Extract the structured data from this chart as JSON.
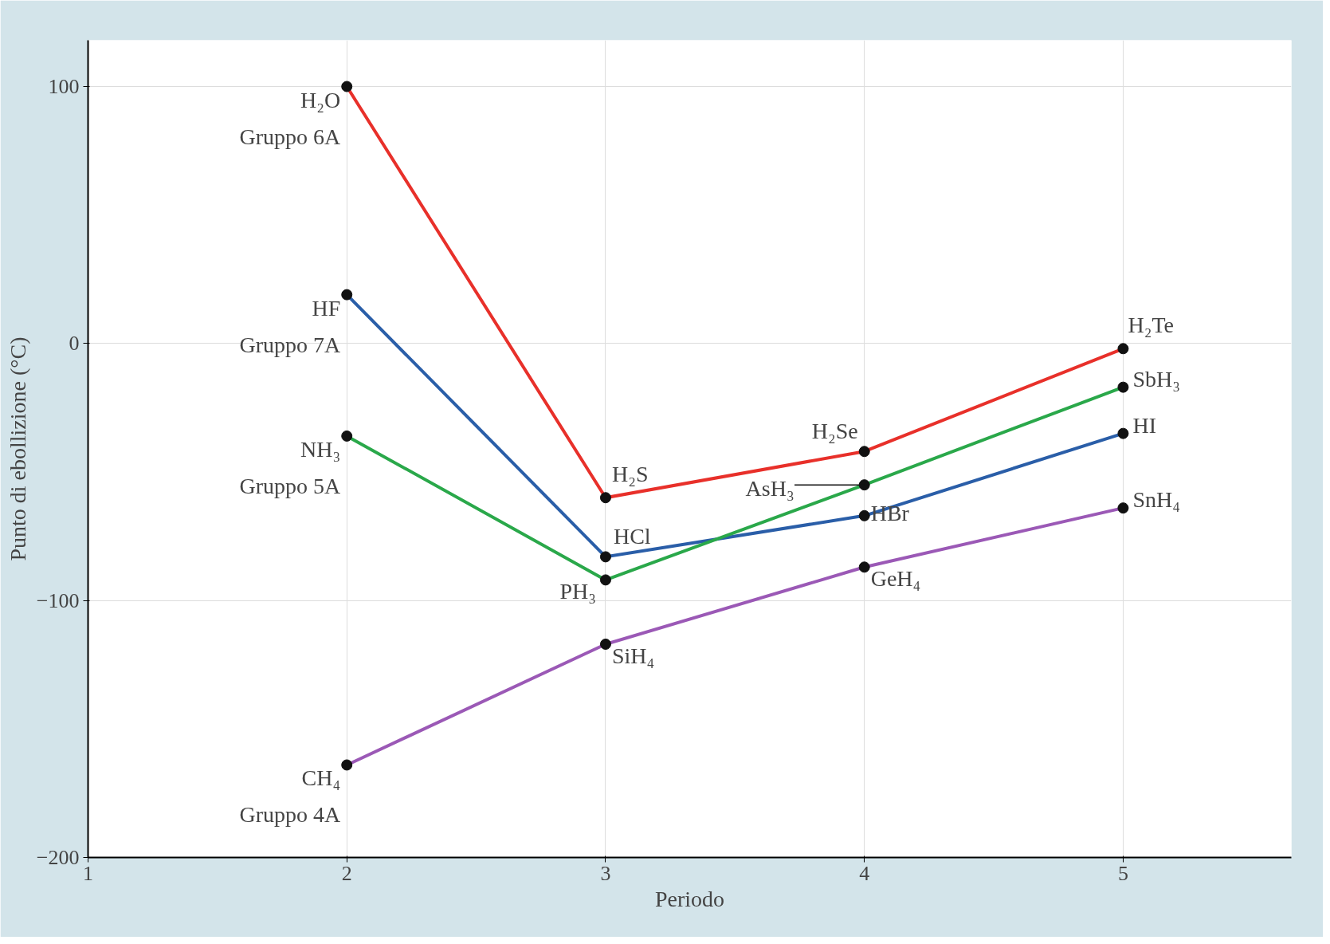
{
  "chart_data": {
    "type": "line",
    "xlabel": "Periodo",
    "ylabel": "Punto di ebollizione (°C)",
    "x": [
      2,
      3,
      4,
      5
    ],
    "series": [
      {
        "name": "Gruppo 6A",
        "color": "#e8302a",
        "values": [
          100,
          -60,
          -42,
          -2
        ]
      },
      {
        "name": "Gruppo 7A",
        "color": "#2a5ea8",
        "values": [
          19,
          -83,
          -67,
          -35
        ]
      },
      {
        "name": "Gruppo 5A",
        "color": "#2aa84a",
        "values": [
          -36,
          -92,
          -55,
          -17
        ]
      },
      {
        "name": "Gruppo 4A",
        "color": "#9b59b6",
        "values": [
          -164,
          -117,
          -87,
          -64
        ]
      }
    ],
    "xlim": [
      1,
      5.65
    ],
    "ylim": [
      -200,
      118
    ],
    "xticks": [
      1,
      2,
      3,
      4,
      5
    ],
    "yticks": [
      {
        "value": -200,
        "label": "−200"
      },
      {
        "value": -100,
        "label": "−100"
      },
      0,
      100
    ],
    "grid": true,
    "marker": "circle",
    "line_style": "solid",
    "annotations": [
      {
        "text": "H₂O",
        "x": 2,
        "y": 100
      },
      {
        "text": "H₂S",
        "x": 3,
        "y": -60
      },
      {
        "text": "H₂Se",
        "x": 4,
        "y": -42
      },
      {
        "text": "H₂Te",
        "x": 5,
        "y": -2
      },
      {
        "text": "HF",
        "x": 2,
        "y": 19
      },
      {
        "text": "HCl",
        "x": 3,
        "y": -83
      },
      {
        "text": "HBr",
        "x": 4,
        "y": -67
      },
      {
        "text": "HI",
        "x": 5,
        "y": -35
      },
      {
        "text": "NH₃",
        "x": 2,
        "y": -36
      },
      {
        "text": "PH₃",
        "x": 3,
        "y": -92
      },
      {
        "text": "AsH₃",
        "x": 4,
        "y": -55
      },
      {
        "text": "SbH₃",
        "x": 5,
        "y": -17
      },
      {
        "text": "CH₄",
        "x": 2,
        "y": -164
      },
      {
        "text": "SiH₄",
        "x": 3,
        "y": -117
      },
      {
        "text": "GeH₄",
        "x": 4,
        "y": -87
      },
      {
        "text": "SnH₄",
        "x": 5,
        "y": -64
      }
    ]
  }
}
